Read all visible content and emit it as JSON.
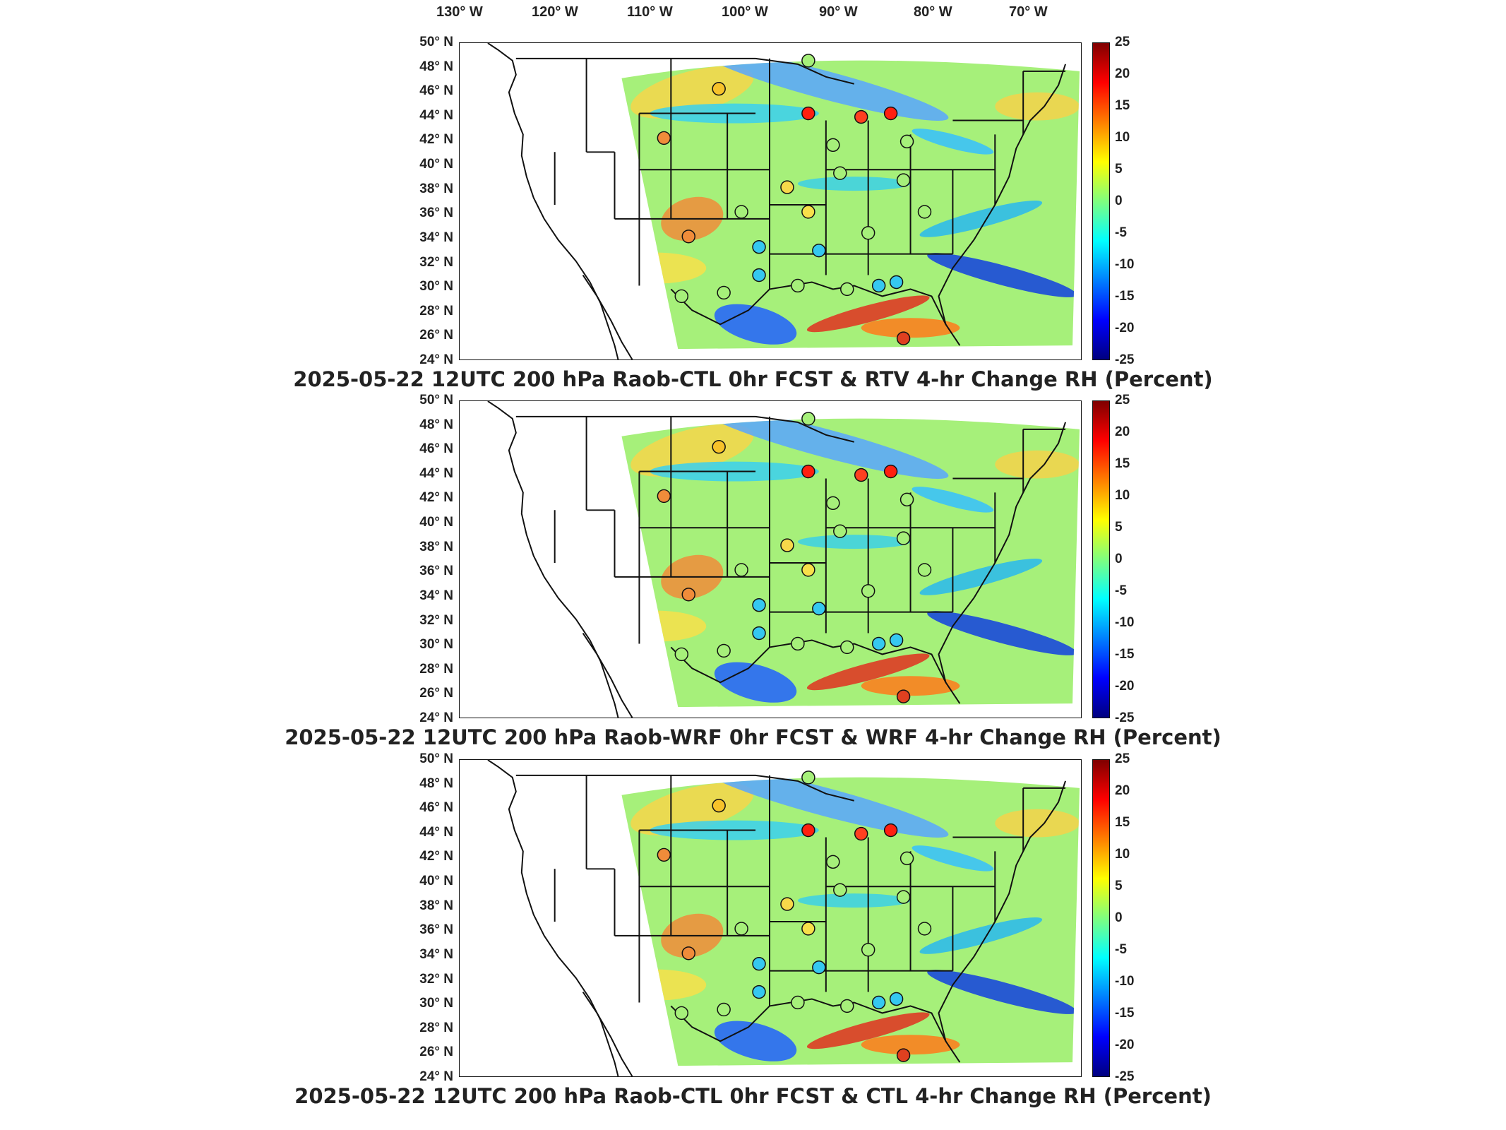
{
  "longitude_labels": [
    "130° W",
    "120° W",
    "110° W",
    "100° W",
    "90° W",
    "80° W",
    "70° W"
  ],
  "latitude_labels": [
    "50° N",
    "48° N",
    "46° N",
    "44° N",
    "42° N",
    "40° N",
    "38° N",
    "36° N",
    "34° N",
    "32° N",
    "30° N",
    "28° N",
    "26° N",
    "24° N"
  ],
  "colorbar": {
    "ticks": [
      "25",
      "20",
      "15",
      "10",
      "5",
      "0",
      "-5",
      "-10",
      "-15",
      "-20",
      "-25"
    ],
    "colors": [
      "#00007f",
      "#0000ff",
      "#007fff",
      "#00ffff",
      "#7fff7f",
      "#ffff00",
      "#ff7f00",
      "#ff0000",
      "#7f0000"
    ]
  },
  "panels": [
    {
      "title": "2025-05-22 12UTC 200 hPa Raob-CTL 0hr FCST & RTV 4-hr Change RH (Percent)"
    },
    {
      "title": "2025-05-22 12UTC 200 hPa Raob-WRF 0hr FCST & WRF 4-hr Change RH (Percent)"
    },
    {
      "title": "2025-05-22 12UTC 200 hPa Raob-CTL 0hr FCST & CTL 4-hr Change RH (Percent)"
    }
  ]
}
